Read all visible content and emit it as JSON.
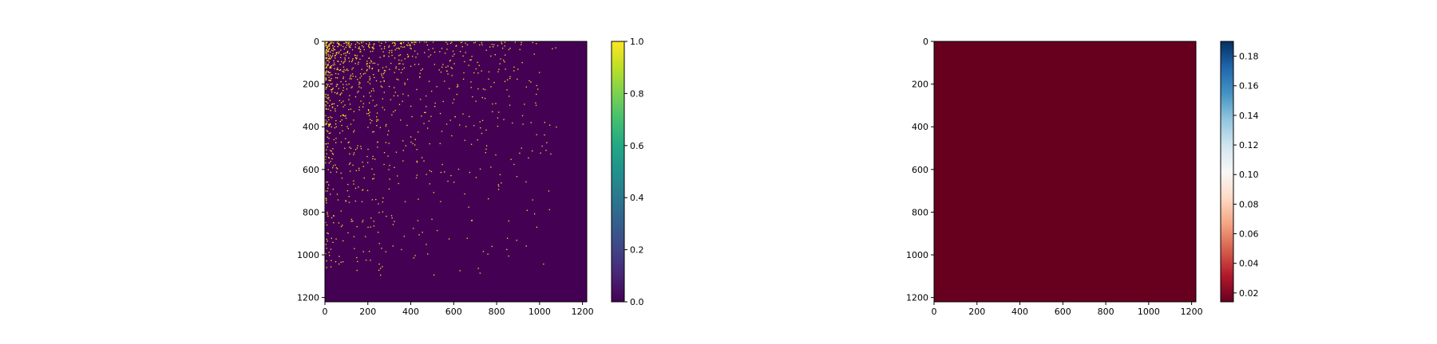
{
  "chart_data": [
    {
      "type": "heatmap",
      "title": "",
      "xlabel": "",
      "ylabel": "",
      "xlim": [
        0,
        1220
      ],
      "ylim": [
        1220,
        0
      ],
      "x_ticks": [
        "0",
        "200",
        "400",
        "600",
        "800",
        "1000",
        "1200"
      ],
      "y_ticks": [
        "0",
        "200",
        "400",
        "600",
        "800",
        "1000",
        "1200"
      ],
      "colormap": "viridis",
      "colorbar": {
        "range": [
          0.0,
          1.0
        ],
        "ticks": [
          "0.0",
          "0.2",
          "0.4",
          "0.6",
          "0.8",
          "1.0"
        ]
      },
      "background_value": 0.0,
      "description_of_values": "sparse binary matrix; density of 1-values decreases with distance from top-left",
      "colors": {
        "low": "#440154",
        "high": "#fde725"
      }
    },
    {
      "type": "heatmap",
      "title": "",
      "xlabel": "",
      "ylabel": "",
      "xlim": [
        0,
        1220
      ],
      "ylim": [
        1220,
        0
      ],
      "x_ticks": [
        "0",
        "200",
        "400",
        "600",
        "800",
        "1000",
        "1200"
      ],
      "y_ticks": [
        "0",
        "200",
        "400",
        "600",
        "800",
        "1000",
        "1200"
      ],
      "colormap": "RdBu",
      "colorbar": {
        "range": [
          0.014,
          0.19
        ],
        "ticks": [
          "0.02",
          "0.04",
          "0.06",
          "0.08",
          "0.10",
          "0.12",
          "0.14",
          "0.16",
          "0.18"
        ]
      },
      "uniform_value": 0.015,
      "colors": {
        "fill": "#67001f",
        "low": "#67001f",
        "mid": "#f7f7f7",
        "high": "#053061"
      }
    }
  ]
}
